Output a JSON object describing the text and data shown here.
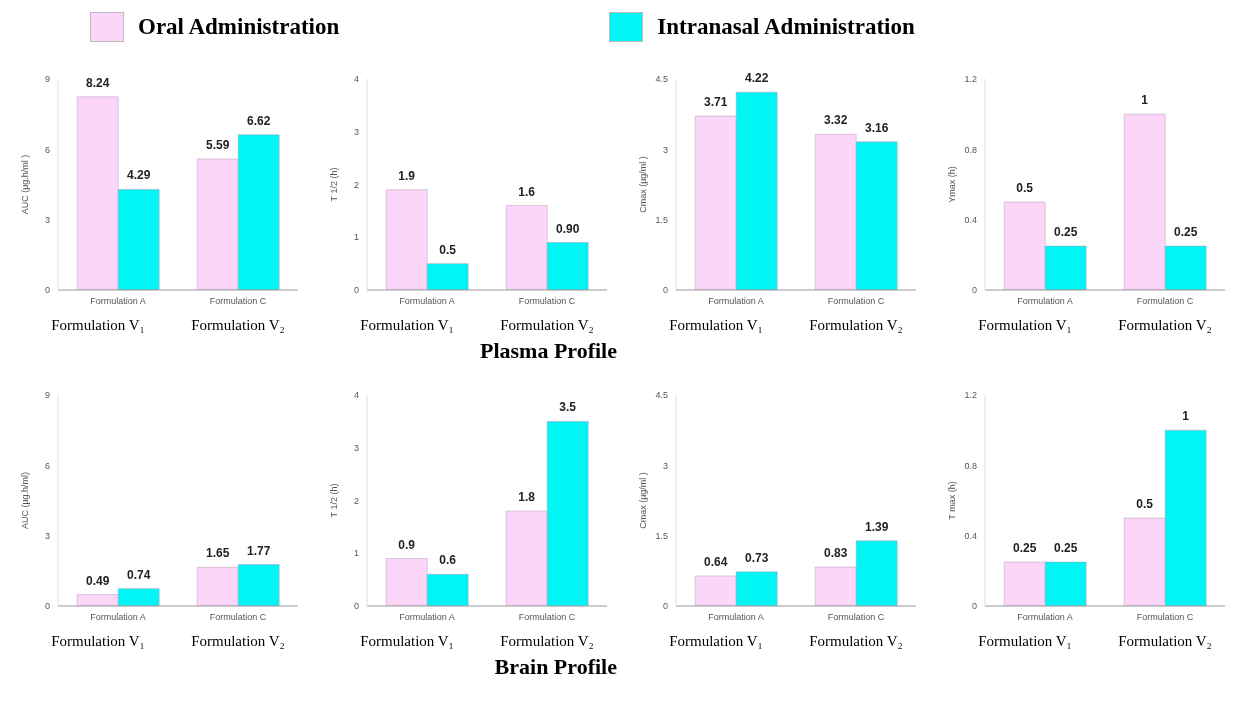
{
  "chart_data": [
    {
      "type": "bar",
      "legend": "top",
      "categories": [
        "Formulation A",
        "Formulation C"
      ],
      "ylabel": "AUC (µg.h/ml )",
      "ylim": [
        0,
        9
      ],
      "yticks": [
        0,
        3,
        6,
        9
      ],
      "annotations": [
        "Formulation V₁",
        "Formulation V₂"
      ],
      "series": [
        {
          "name": "Oral Administration",
          "color": "#fcd6f8",
          "values": [
            8.24,
            5.59
          ],
          "value_labels": [
            "8.24",
            "5.59"
          ]
        },
        {
          "name": "Intranasal Administration",
          "color": "#00f5f5",
          "values": [
            4.29,
            6.62
          ],
          "value_labels": [
            "4.29",
            "6.62"
          ]
        }
      ]
    },
    {
      "type": "bar",
      "title": "Plasma Profile",
      "categories": [
        "Formulation A",
        "Formulation C"
      ],
      "ylabel": "T 1/2 (h)",
      "ylim": [
        0,
        4
      ],
      "yticks": [
        0,
        1,
        2,
        3,
        4
      ],
      "annotations": [
        "Formulation V₁",
        "Formulation V₂"
      ],
      "series": [
        {
          "color": "#fcd6f8",
          "values": [
            1.9,
            1.6
          ],
          "value_labels": [
            "1.9",
            "1.6"
          ]
        },
        {
          "color": "#00f5f5",
          "values": [
            0.5,
            0.9
          ],
          "value_labels": [
            "0.5",
            "0.90"
          ]
        }
      ]
    },
    {
      "type": "bar",
      "categories": [
        "Formulation A",
        "Formulation C"
      ],
      "ylabel": "Cmax (µg/ml )",
      "ylim": [
        0,
        4.5
      ],
      "yticks": [
        0,
        1.5,
        3,
        4.5
      ],
      "annotations": [
        "Formulation V₁",
        "Formulation V₂"
      ],
      "series": [
        {
          "color": "#fcd6f8",
          "values": [
            3.71,
            3.32
          ],
          "value_labels": [
            "3.71",
            "3.32"
          ]
        },
        {
          "color": "#00f5f5",
          "values": [
            4.22,
            3.16
          ],
          "value_labels": [
            "4.22",
            "3.16"
          ]
        }
      ]
    },
    {
      "type": "bar",
      "categories": [
        "Formulation A",
        "Formulation C"
      ],
      "ylabel": "Ymax (h)",
      "ylim": [
        0,
        1.2
      ],
      "yticks": [
        0,
        0.4,
        0.8,
        1.2
      ],
      "annotations": [
        "Formulation V₁",
        "Formulation V₂"
      ],
      "series": [
        {
          "color": "#fcd6f8",
          "values": [
            0.5,
            1
          ],
          "value_labels": [
            "0.5",
            "1"
          ]
        },
        {
          "color": "#00f5f5",
          "values": [
            0.25,
            0.25
          ],
          "value_labels": [
            "0.25",
            "0.25"
          ]
        }
      ]
    },
    {
      "type": "bar",
      "categories": [
        "Formulation A",
        "Formulation C"
      ],
      "ylabel": "AUC (µg.h/ml)",
      "ylim": [
        0,
        9
      ],
      "yticks": [
        0,
        3,
        6,
        9
      ],
      "annotations": [
        "Formulation V₁",
        "Formulation V₂"
      ],
      "series": [
        {
          "color": "#fcd6f8",
          "values": [
            0.49,
            1.65
          ],
          "value_labels": [
            "0.49",
            "1.65"
          ]
        },
        {
          "color": "#00f5f5",
          "values": [
            0.74,
            1.77
          ],
          "value_labels": [
            "0.74",
            "1.77"
          ]
        }
      ]
    },
    {
      "type": "bar",
      "title": "Brain Profile",
      "categories": [
        "Formulation A",
        "Formulation C"
      ],
      "ylabel": "T 1/2 (h)",
      "ylim": [
        0,
        4
      ],
      "yticks": [
        0,
        1,
        2,
        3,
        4
      ],
      "annotations": [
        "Formulation V₁",
        "Formulation V₂"
      ],
      "series": [
        {
          "color": "#fcd6f8",
          "values": [
            0.9,
            1.8
          ],
          "value_labels": [
            "0.9",
            "1.8"
          ]
        },
        {
          "color": "#00f5f5",
          "values": [
            0.6,
            3.5
          ],
          "value_labels": [
            "0.6",
            "3.5"
          ]
        }
      ]
    },
    {
      "type": "bar",
      "categories": [
        "Formulation A",
        "Formulation C"
      ],
      "ylabel": "Cmax (µg/ml )",
      "ylim": [
        0,
        4.5
      ],
      "yticks": [
        0,
        1.5,
        3,
        4.5
      ],
      "annotations": [
        "Formulation V₁",
        "Formulation V₂"
      ],
      "series": [
        {
          "color": "#fcd6f8",
          "values": [
            0.64,
            0.83
          ],
          "value_labels": [
            "0.64",
            "0.83"
          ]
        },
        {
          "color": "#00f5f5",
          "values": [
            0.73,
            1.39
          ],
          "value_labels": [
            "0.73",
            "1.39"
          ]
        }
      ]
    },
    {
      "type": "bar",
      "categories": [
        "Formulation A",
        "Formulation C"
      ],
      "ylabel": "T max (h)",
      "ylim": [
        0,
        1.2
      ],
      "yticks": [
        0,
        0.4,
        0.8,
        1.2
      ],
      "annotations": [
        "Formulation V₁",
        "Formulation V₂"
      ],
      "series": [
        {
          "color": "#fcd6f8",
          "values": [
            0.25,
            0.5
          ],
          "value_labels": [
            "0.25",
            "0.5"
          ]
        },
        {
          "color": "#00f5f5",
          "values": [
            0.25,
            1
          ],
          "value_labels": [
            "0.25",
            "1"
          ]
        }
      ]
    }
  ]
}
